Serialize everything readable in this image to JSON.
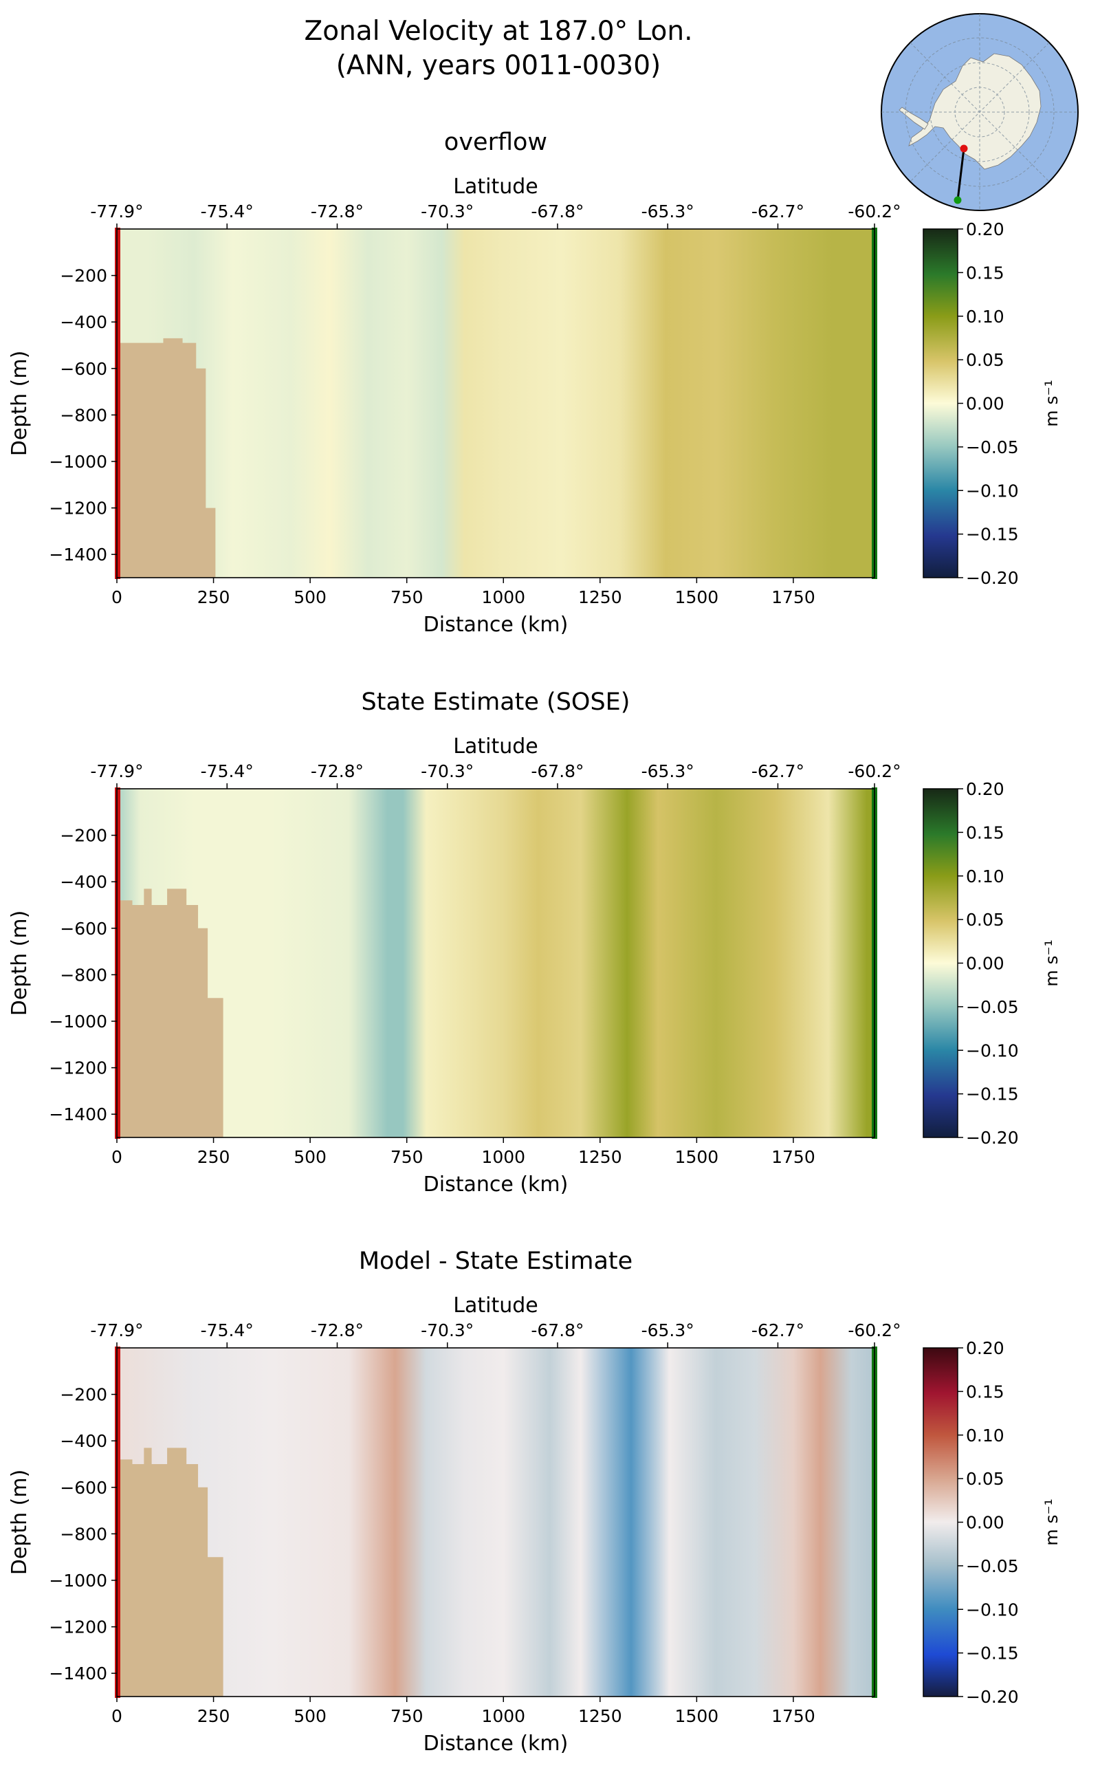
{
  "figure": {
    "title_line1": "Zonal Velocity at 187.0° Lon.",
    "title_line2": "(ANN, years 0011-0030)",
    "colors": {
      "land": "#d2b78f",
      "start_marker": "#cc1111",
      "end_marker": "#117711",
      "ocean": "#96b8e6",
      "ice": "#f0efe2"
    }
  },
  "chart_data": [
    {
      "type": "heatmap",
      "title": "overflow",
      "xlabel": "Distance (km)",
      "ylabel": "Depth (m)",
      "x2label": "Latitude",
      "xlim": [
        0,
        1960
      ],
      "ylim": [
        -1500,
        0
      ],
      "xticks": [
        0,
        250,
        500,
        750,
        1000,
        1250,
        1500,
        1750
      ],
      "xtick_labels": [
        "0",
        "250",
        "500",
        "750",
        "1000",
        "1250",
        "1500",
        "1750"
      ],
      "yticks": [
        -200,
        -400,
        -600,
        -800,
        -1000,
        -1200,
        -1400
      ],
      "ytick_labels": [
        "−200",
        "−400",
        "−600",
        "−800",
        "−1000",
        "−1200",
        "−1400"
      ],
      "lat_ticks_km": [
        0,
        285,
        570,
        855,
        1140,
        1425,
        1710,
        1960
      ],
      "lat_labels": [
        "-77.9°",
        "-75.4°",
        "-72.8°",
        "-70.3°",
        "-67.8°",
        "-65.3°",
        "-62.7°",
        "-60.2°"
      ],
      "colorbar": {
        "cmap": "delta",
        "label": "m s⁻¹",
        "range": [
          -0.2,
          0.2
        ],
        "ticks": [
          "0.20",
          "0.15",
          "0.10",
          "0.05",
          "0.00",
          "−0.05",
          "−0.10",
          "−0.15",
          "−0.20"
        ]
      },
      "bathymetry": {
        "x": [
          0,
          10,
          50,
          120,
          170,
          205,
          230,
          255
        ],
        "depth": [
          -490,
          -490,
          -490,
          -470,
          -490,
          -600,
          -1200,
          -1500
        ]
      },
      "velocity_profile": {
        "x": [
          0,
          80,
          200,
          300,
          450,
          550,
          650,
          750,
          840,
          900,
          1000,
          1150,
          1300,
          1420,
          1550,
          1700,
          1850,
          1960
        ],
        "u": [
          -0.01,
          -0.01,
          -0.015,
          -0.005,
          -0.01,
          0.005,
          -0.015,
          -0.01,
          -0.02,
          0.02,
          0.015,
          0.01,
          0.02,
          0.05,
          0.045,
          0.06,
          0.07,
          0.07
        ]
      }
    },
    {
      "type": "heatmap",
      "title": "State Estimate (SOSE)",
      "xlabel": "Distance (km)",
      "ylabel": "Depth (m)",
      "x2label": "Latitude",
      "xlim": [
        0,
        1960
      ],
      "ylim": [
        -1500,
        0
      ],
      "xticks": [
        0,
        250,
        500,
        750,
        1000,
        1250,
        1500,
        1750
      ],
      "xtick_labels": [
        "0",
        "250",
        "500",
        "750",
        "1000",
        "1250",
        "1500",
        "1750"
      ],
      "yticks": [
        -200,
        -400,
        -600,
        -800,
        -1000,
        -1200,
        -1400
      ],
      "ytick_labels": [
        "−200",
        "−400",
        "−600",
        "−800",
        "−1000",
        "−1200",
        "−1400"
      ],
      "lat_ticks_km": [
        0,
        285,
        570,
        855,
        1140,
        1425,
        1710,
        1960
      ],
      "lat_labels": [
        "-77.9°",
        "-75.4°",
        "-72.8°",
        "-70.3°",
        "-67.8°",
        "-65.3°",
        "-62.7°",
        "-60.2°"
      ],
      "colorbar": {
        "cmap": "delta",
        "label": "m s⁻¹",
        "range": [
          -0.2,
          0.2
        ],
        "ticks": [
          "0.20",
          "0.15",
          "0.10",
          "0.05",
          "0.00",
          "−0.05",
          "−0.10",
          "−0.15",
          "−0.20"
        ]
      },
      "bathymetry": {
        "x": [
          0,
          10,
          40,
          70,
          90,
          130,
          180,
          210,
          235,
          275
        ],
        "depth": [
          -480,
          -480,
          -500,
          -430,
          -500,
          -430,
          -500,
          -600,
          -900,
          -1500
        ]
      },
      "velocity_profile": {
        "x": [
          0,
          60,
          200,
          400,
          600,
          700,
          740,
          800,
          900,
          1000,
          1090,
          1200,
          1320,
          1400,
          1550,
          1700,
          1840,
          1940,
          1960
        ],
        "u": [
          -0.04,
          -0.01,
          -0.005,
          -0.005,
          -0.01,
          -0.05,
          -0.05,
          0.01,
          0.02,
          0.03,
          0.045,
          0.035,
          0.09,
          0.05,
          0.07,
          0.05,
          0.02,
          0.09,
          0.09
        ]
      }
    },
    {
      "type": "heatmap",
      "title": "Model - State Estimate",
      "xlabel": "Distance (km)",
      "ylabel": "Depth (m)",
      "x2label": "Latitude",
      "xlim": [
        0,
        1960
      ],
      "ylim": [
        -1500,
        0
      ],
      "xticks": [
        0,
        250,
        500,
        750,
        1000,
        1250,
        1500,
        1750
      ],
      "xtick_labels": [
        "0",
        "250",
        "500",
        "750",
        "1000",
        "1250",
        "1500",
        "1750"
      ],
      "yticks": [
        -200,
        -400,
        -600,
        -800,
        -1000,
        -1200,
        -1400
      ],
      "ytick_labels": [
        "−200",
        "−400",
        "−600",
        "−800",
        "−1000",
        "−1200",
        "−1400"
      ],
      "lat_ticks_km": [
        0,
        285,
        570,
        855,
        1140,
        1425,
        1710,
        1960
      ],
      "lat_labels": [
        "-77.9°",
        "-75.4°",
        "-72.8°",
        "-70.3°",
        "-67.8°",
        "-65.3°",
        "-62.7°",
        "-60.2°"
      ],
      "colorbar": {
        "cmap": "balance",
        "label": "m s⁻¹",
        "range": [
          -0.2,
          0.2
        ],
        "ticks": [
          "0.20",
          "0.15",
          "0.10",
          "0.05",
          "0.00",
          "−0.05",
          "−0.10",
          "−0.15",
          "−0.20"
        ]
      },
      "bathymetry": {
        "x": [
          0,
          10,
          40,
          70,
          90,
          130,
          180,
          210,
          235,
          275
        ],
        "depth": [
          -480,
          -480,
          -500,
          -430,
          -500,
          -430,
          -500,
          -600,
          -900,
          -1500
        ]
      },
      "velocity_profile": {
        "x": [
          0,
          200,
          400,
          600,
          720,
          800,
          900,
          1000,
          1120,
          1200,
          1330,
          1430,
          1550,
          1650,
          1750,
          1820,
          1900,
          1960
        ],
        "u": [
          0.01,
          -0.005,
          0.0,
          0.005,
          0.05,
          -0.02,
          -0.005,
          0.0,
          -0.03,
          0.0,
          -0.09,
          0.0,
          -0.03,
          -0.02,
          0.02,
          0.05,
          -0.03,
          -0.04
        ]
      }
    }
  ]
}
